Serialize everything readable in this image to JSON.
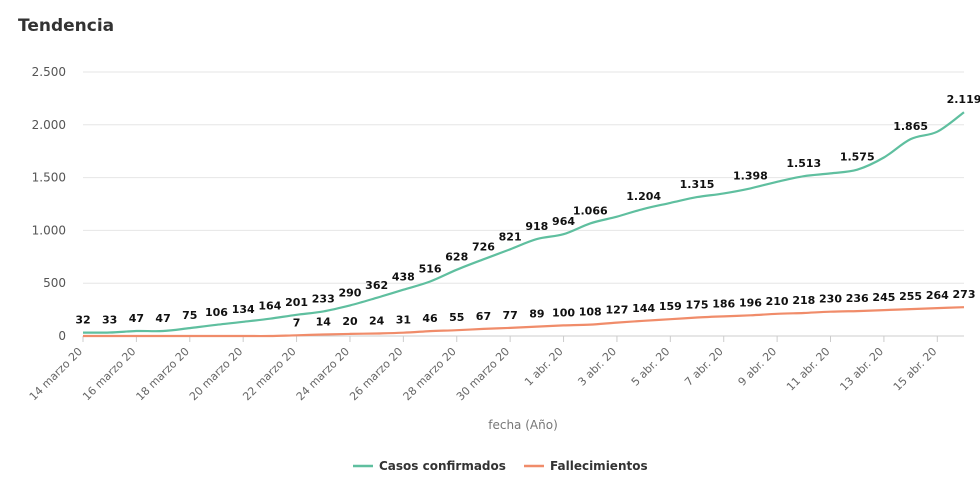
{
  "chart_data": {
    "type": "line",
    "title": "Tendencia",
    "xlabel": "fecha (Año)",
    "ylabel": "",
    "ylim": [
      0,
      2500
    ],
    "yticks": [
      0,
      500,
      1000,
      1500,
      2000,
      2500
    ],
    "ytick_labels": [
      "0",
      "500",
      "1.000",
      "1.500",
      "2.000",
      "2.500"
    ],
    "x": [
      "14 marzo 20",
      "15 marzo 20",
      "16 marzo 20",
      "17 marzo 20",
      "18 marzo 20",
      "19 marzo 20",
      "20 marzo 20",
      "21 marzo 20",
      "22 marzo 20",
      "23 marzo 20",
      "24 marzo 20",
      "25 marzo 20",
      "26 marzo 20",
      "27 marzo 20",
      "28 marzo 20",
      "29 marzo 20",
      "30 marzo 20",
      "31 marzo 20",
      "1 abr. 20",
      "2 abr. 20",
      "3 abr. 20",
      "4 abr. 20",
      "5 abr. 20",
      "6 abr. 20",
      "7 abr. 20",
      "8 abr. 20",
      "9 abr. 20",
      "10 abr. 20",
      "11 abr. 20",
      "12 abr. 20",
      "13 abr. 20",
      "14 abr. 20",
      "15 abr. 20",
      "16 abr. 20"
    ],
    "xtick_labels": [
      "14 marzo 20",
      "16 marzo 20",
      "18 marzo 20",
      "20 marzo 20",
      "22 marzo 20",
      "24 marzo 20",
      "26 marzo 20",
      "28 marzo 20",
      "30 marzo 20",
      "1 abr. 20",
      "3 abr. 20",
      "5 abr. 20",
      "7 abr. 20",
      "9 abr. 20",
      "11 abr. 20",
      "13 abr. 20",
      "15 abr. 20"
    ],
    "legend_position": "bottom-center",
    "grid": true,
    "series": [
      {
        "name": "Casos confirmados",
        "color": "#5fbf9f",
        "values": [
          32,
          33,
          47,
          47,
          75,
          106,
          134,
          164,
          201,
          233,
          290,
          362,
          438,
          516,
          628,
          726,
          821,
          918,
          964,
          1066,
          1130,
          1204,
          1260,
          1315,
          1350,
          1398,
          1460,
          1513,
          1540,
          1575,
          1690,
          1865,
          1935,
          2119
        ],
        "labels": [
          "32",
          "33",
          "47",
          "47",
          "75",
          "106",
          "134",
          "164",
          "201",
          "233",
          "290",
          "362",
          "438",
          "516",
          "628",
          "726",
          "821",
          "918",
          "964",
          "1.066",
          "",
          "1.204",
          "",
          "1.315",
          "",
          "1.398",
          "",
          "1.513",
          "",
          "1.575",
          "",
          "1.865",
          "",
          "2.119"
        ]
      },
      {
        "name": "Fallecimientos",
        "color": "#f08c6a",
        "values": [
          0,
          0,
          0,
          0,
          0,
          0,
          0,
          0,
          7,
          14,
          20,
          24,
          31,
          46,
          55,
          67,
          77,
          89,
          100,
          108,
          127,
          144,
          159,
          175,
          186,
          196,
          210,
          218,
          230,
          236,
          245,
          255,
          264,
          273
        ],
        "labels": [
          "",
          "",
          "",
          "",
          "",
          "",
          "",
          "",
          "7",
          "14",
          "20",
          "24",
          "31",
          "46",
          "55",
          "67",
          "77",
          "89",
          "100",
          "108",
          "127",
          "144",
          "159",
          "175",
          "186",
          "196",
          "210",
          "218",
          "230",
          "236",
          "245",
          "255",
          "264",
          "273"
        ]
      }
    ]
  }
}
